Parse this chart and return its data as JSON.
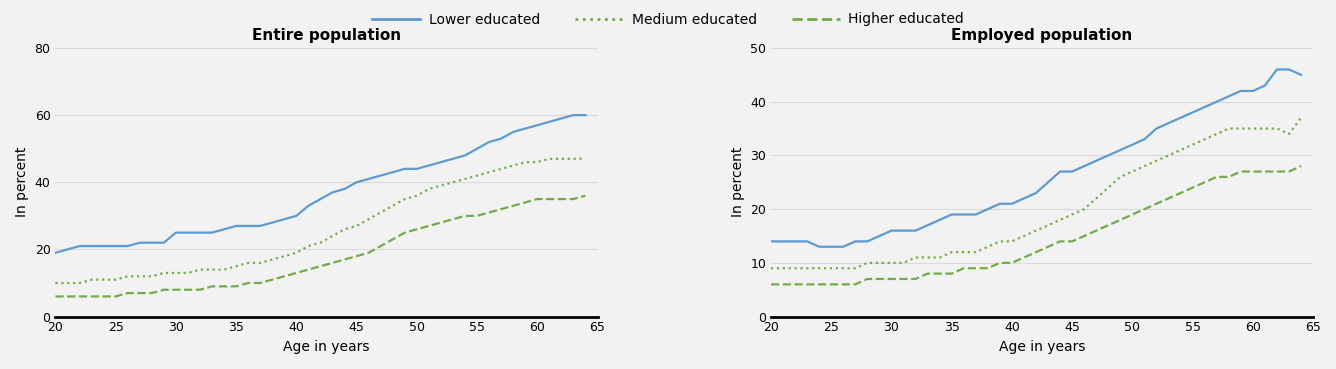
{
  "ages": [
    20,
    21,
    22,
    23,
    24,
    25,
    26,
    27,
    28,
    29,
    30,
    31,
    32,
    33,
    34,
    35,
    36,
    37,
    38,
    39,
    40,
    41,
    42,
    43,
    44,
    45,
    46,
    47,
    48,
    49,
    50,
    51,
    52,
    53,
    54,
    55,
    56,
    57,
    58,
    59,
    60,
    61,
    62,
    63,
    64
  ],
  "entire_lower": [
    19,
    20,
    21,
    21,
    21,
    21,
    21,
    22,
    22,
    22,
    25,
    25,
    25,
    25,
    26,
    27,
    27,
    27,
    28,
    29,
    30,
    33,
    35,
    37,
    38,
    40,
    41,
    42,
    43,
    44,
    44,
    45,
    46,
    47,
    48,
    50,
    52,
    53,
    55,
    56,
    57,
    58,
    59,
    60,
    60
  ],
  "entire_medium": [
    10,
    10,
    10,
    11,
    11,
    11,
    12,
    12,
    12,
    13,
    13,
    13,
    14,
    14,
    14,
    15,
    16,
    16,
    17,
    18,
    19,
    21,
    22,
    24,
    26,
    27,
    29,
    31,
    33,
    35,
    36,
    38,
    39,
    40,
    41,
    42,
    43,
    44,
    45,
    46,
    46,
    47,
    47,
    47,
    47
  ],
  "entire_higher": [
    6,
    6,
    6,
    6,
    6,
    6,
    7,
    7,
    7,
    8,
    8,
    8,
    8,
    9,
    9,
    9,
    10,
    10,
    11,
    12,
    13,
    14,
    15,
    16,
    17,
    18,
    19,
    21,
    23,
    25,
    26,
    27,
    28,
    29,
    30,
    30,
    31,
    32,
    33,
    34,
    35,
    35,
    35,
    35,
    36
  ],
  "employed_lower": [
    14,
    14,
    14,
    14,
    13,
    13,
    13,
    14,
    14,
    15,
    16,
    16,
    16,
    17,
    18,
    19,
    19,
    19,
    20,
    21,
    21,
    22,
    23,
    25,
    27,
    27,
    28,
    29,
    30,
    31,
    32,
    33,
    35,
    36,
    37,
    38,
    39,
    40,
    41,
    42,
    42,
    43,
    46,
    46,
    45
  ],
  "employed_medium": [
    9,
    9,
    9,
    9,
    9,
    9,
    9,
    9,
    10,
    10,
    10,
    10,
    11,
    11,
    11,
    12,
    12,
    12,
    13,
    14,
    14,
    15,
    16,
    17,
    18,
    19,
    20,
    22,
    24,
    26,
    27,
    28,
    29,
    30,
    31,
    32,
    33,
    34,
    35,
    35,
    35,
    35,
    35,
    34,
    37
  ],
  "employed_higher": [
    6,
    6,
    6,
    6,
    6,
    6,
    6,
    6,
    7,
    7,
    7,
    7,
    7,
    8,
    8,
    8,
    9,
    9,
    9,
    10,
    10,
    11,
    12,
    13,
    14,
    14,
    15,
    16,
    17,
    18,
    19,
    20,
    21,
    22,
    23,
    24,
    25,
    26,
    26,
    27,
    27,
    27,
    27,
    27,
    28
  ],
  "color_lower": "#5b9bd5",
  "color_medium": "#70ad47",
  "color_higher": "#70ad47",
  "title_left": "Entire population",
  "title_right": "Employed population",
  "ylabel": "In percent",
  "xlabel": "Age in years",
  "legend_labels": [
    "Lower educated",
    "Medium educated",
    "Higher educated"
  ],
  "ylim_left": [
    0,
    80
  ],
  "yticks_left": [
    0,
    20,
    40,
    60,
    80
  ],
  "ylim_right": [
    0,
    50
  ],
  "yticks_right": [
    0,
    10,
    20,
    30,
    40,
    50
  ],
  "xlim": [
    20,
    65
  ],
  "xticks": [
    20,
    25,
    30,
    35,
    40,
    45,
    50,
    55,
    60,
    65
  ],
  "bg_color": "#f2f2f2",
  "grid_color": "#d9d9d9"
}
